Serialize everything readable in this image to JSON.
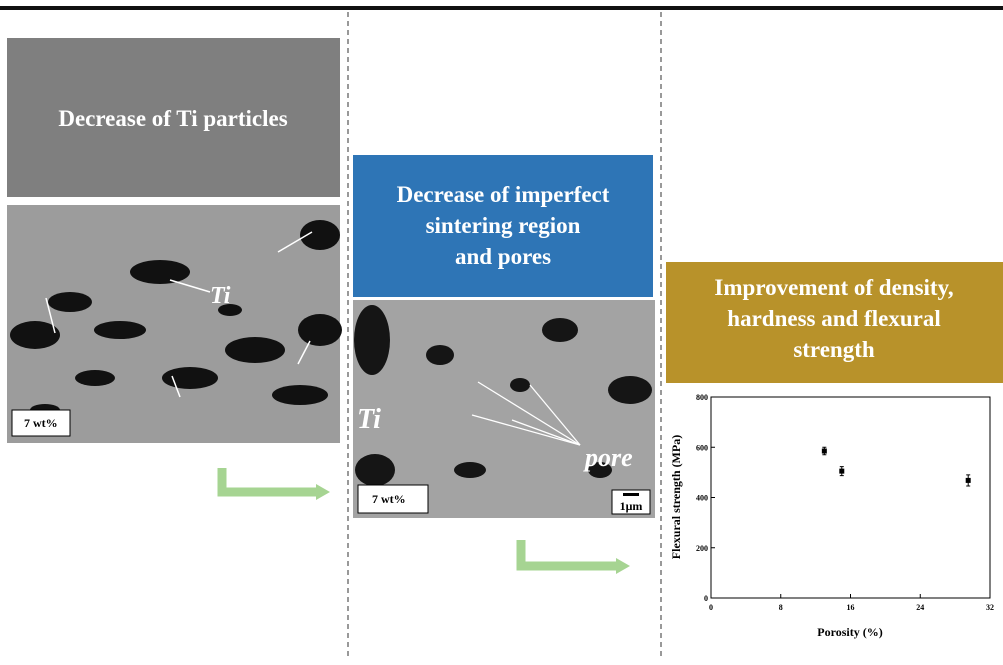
{
  "panels": [
    {
      "title": [
        "Decrease of Ti particles"
      ],
      "image_labels": [
        "Ti",
        "7 wt%"
      ]
    },
    {
      "title": [
        "Decrease of imperfect",
        "sintering region",
        "and pores"
      ],
      "image_labels": [
        "Ti",
        "pore",
        "7 wt%",
        "1μm"
      ]
    },
    {
      "title": [
        "Improvement of density,",
        "hardness and flexural",
        "strength"
      ]
    }
  ],
  "chart": {
    "type": "scatter",
    "x_label": "Porosity (%)",
    "y_label": "Flexural strength (MPa)",
    "x": [
      13,
      15,
      29.5
    ],
    "values": [
      585,
      505,
      468
    ],
    "errors": [
      15,
      18,
      22
    ],
    "xlim": [
      0,
      32
    ],
    "ylim": [
      0,
      800
    ],
    "xticks": [
      0,
      8,
      16,
      24,
      32
    ],
    "yticks": [
      0,
      200,
      400,
      600,
      800
    ]
  }
}
